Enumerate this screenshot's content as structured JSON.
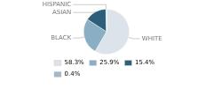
{
  "chart_data": {
    "type": "pie",
    "categories": [
      "WHITE",
      "BLACK",
      "ASIAN",
      "HISPANIC"
    ],
    "values": [
      58.3,
      25.9,
      15.4,
      0.4
    ],
    "value_labels": [
      "58.3%",
      "25.9%",
      "15.4%",
      "0.4%"
    ],
    "colors": [
      "#dce3ea",
      "#8aafc4",
      "#2e5f7a",
      "#a0b8c8"
    ],
    "legend": "lower left"
  }
}
